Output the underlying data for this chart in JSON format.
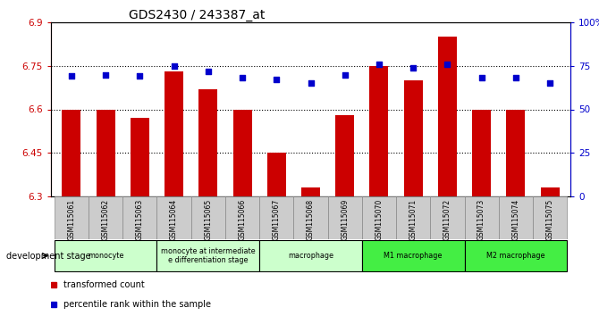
{
  "title": "GDS2430 / 243387_at",
  "samples": [
    "GSM115061",
    "GSM115062",
    "GSM115063",
    "GSM115064",
    "GSM115065",
    "GSM115066",
    "GSM115067",
    "GSM115068",
    "GSM115069",
    "GSM115070",
    "GSM115071",
    "GSM115072",
    "GSM115073",
    "GSM115074",
    "GSM115075"
  ],
  "bar_values": [
    6.6,
    6.6,
    6.57,
    6.73,
    6.67,
    6.6,
    6.45,
    6.33,
    6.58,
    6.75,
    6.7,
    6.85,
    6.6,
    6.6,
    6.33
  ],
  "dot_values": [
    69,
    70,
    69,
    75,
    72,
    68,
    67,
    65,
    70,
    76,
    74,
    76,
    68,
    68,
    65
  ],
  "ylim": [
    6.3,
    6.9
  ],
  "y2lim": [
    0,
    100
  ],
  "yticks": [
    6.3,
    6.45,
    6.6,
    6.75,
    6.9
  ],
  "ytick_labels": [
    "6.3",
    "6.45",
    "6.6",
    "6.75",
    "6.9"
  ],
  "y2ticks": [
    0,
    25,
    50,
    75,
    100
  ],
  "y2tick_labels": [
    "0",
    "25",
    "50",
    "75",
    "100%"
  ],
  "hlines": [
    6.45,
    6.6,
    6.75
  ],
  "bar_color": "#cc0000",
  "dot_color": "#0000cc",
  "bar_bottom": 6.3,
  "groups_def": [
    {
      "label": "monocyte",
      "cols": [
        0,
        1,
        2
      ],
      "color": "#ccffcc"
    },
    {
      "label": "monocyte at intermediate\ne differentiation stage",
      "cols": [
        3,
        4,
        5
      ],
      "color": "#ccffcc"
    },
    {
      "label": "macrophage",
      "cols": [
        6,
        7,
        8
      ],
      "color": "#ccffcc"
    },
    {
      "label": "M1 macrophage",
      "cols": [
        9,
        10,
        11
      ],
      "color": "#44ee44"
    },
    {
      "label": "M2 macrophage",
      "cols": [
        12,
        13,
        14
      ],
      "color": "#44ee44"
    }
  ],
  "legend_items": [
    {
      "label": "transformed count",
      "color": "#cc0000"
    },
    {
      "label": "percentile rank within the sample",
      "color": "#0000cc"
    }
  ],
  "bg_color": "#ffffff",
  "label_bg": "#cccccc"
}
